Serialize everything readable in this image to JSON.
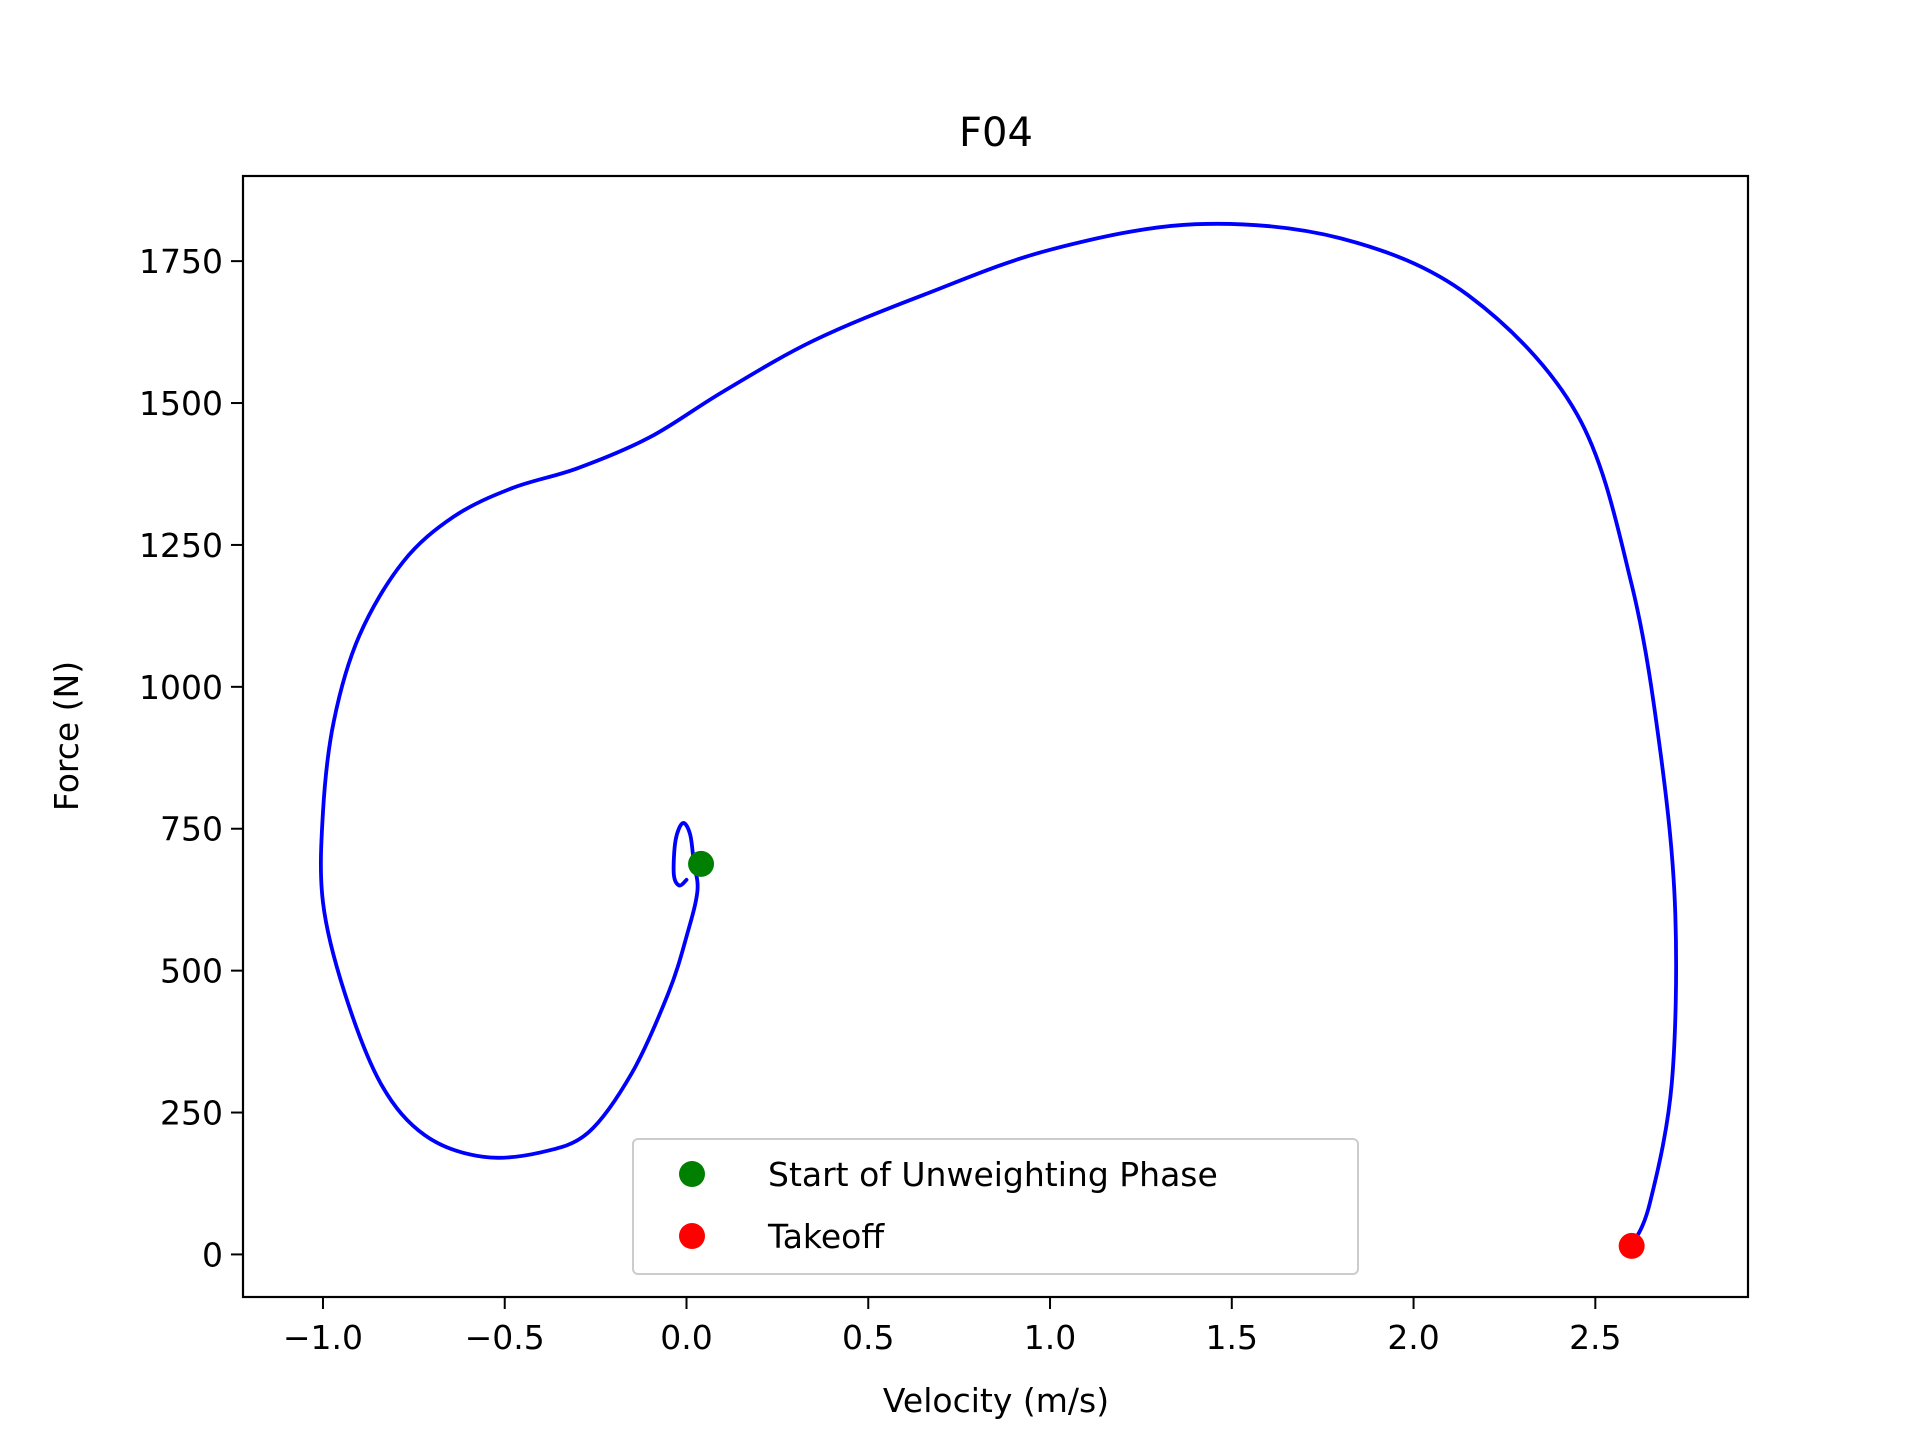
{
  "chart_data": {
    "type": "line",
    "title": "F04",
    "xlabel": "Velocity (m/s)",
    "ylabel": "Force (N)",
    "xlim": [
      -1.22,
      2.92
    ],
    "ylim": [
      -75,
      1900
    ],
    "x_ticks": [
      -1.0,
      -0.5,
      0.0,
      0.5,
      1.0,
      1.5,
      2.0,
      2.5
    ],
    "x_tick_labels": [
      "−1.0",
      "−0.5",
      "0.0",
      "0.5",
      "1.0",
      "1.5",
      "2.0",
      "2.5"
    ],
    "y_ticks": [
      0,
      250,
      500,
      750,
      1000,
      1250,
      1500,
      1750
    ],
    "y_tick_labels": [
      "0",
      "250",
      "500",
      "750",
      "1000",
      "1250",
      "1500",
      "1750"
    ],
    "grid": false,
    "legend_position": "bottom-center",
    "series": [
      {
        "color": "#0000ff",
        "points": [
          [
            0.0,
            660
          ],
          [
            -0.02,
            650
          ],
          [
            -0.035,
            670
          ],
          [
            -0.03,
            730
          ],
          [
            -0.01,
            760
          ],
          [
            0.01,
            740
          ],
          [
            0.02,
            690
          ],
          [
            0.03,
            640
          ],
          [
            0.0,
            560
          ],
          [
            -0.05,
            460
          ],
          [
            -0.15,
            320
          ],
          [
            -0.27,
            215
          ],
          [
            -0.4,
            180
          ],
          [
            -0.56,
            172
          ],
          [
            -0.72,
            210
          ],
          [
            -0.84,
            300
          ],
          [
            -0.94,
            460
          ],
          [
            -1.0,
            620
          ],
          [
            -1.0,
            780
          ],
          [
            -0.97,
            940
          ],
          [
            -0.9,
            1090
          ],
          [
            -0.78,
            1220
          ],
          [
            -0.64,
            1300
          ],
          [
            -0.48,
            1350
          ],
          [
            -0.3,
            1385
          ],
          [
            -0.1,
            1440
          ],
          [
            0.1,
            1520
          ],
          [
            0.35,
            1610
          ],
          [
            0.65,
            1690
          ],
          [
            1.0,
            1770
          ],
          [
            1.4,
            1815
          ],
          [
            1.8,
            1790
          ],
          [
            2.15,
            1690
          ],
          [
            2.45,
            1480
          ],
          [
            2.6,
            1180
          ],
          [
            2.68,
            880
          ],
          [
            2.72,
            600
          ],
          [
            2.71,
            300
          ],
          [
            2.65,
            90
          ],
          [
            2.6,
            15
          ]
        ]
      }
    ],
    "markers": [
      {
        "label": "Start of Unweighting Phase",
        "x": 0.04,
        "y": 688,
        "color": "#008000"
      },
      {
        "label": "Takeoff",
        "x": 2.6,
        "y": 15,
        "color": "#ff0000"
      }
    ]
  }
}
